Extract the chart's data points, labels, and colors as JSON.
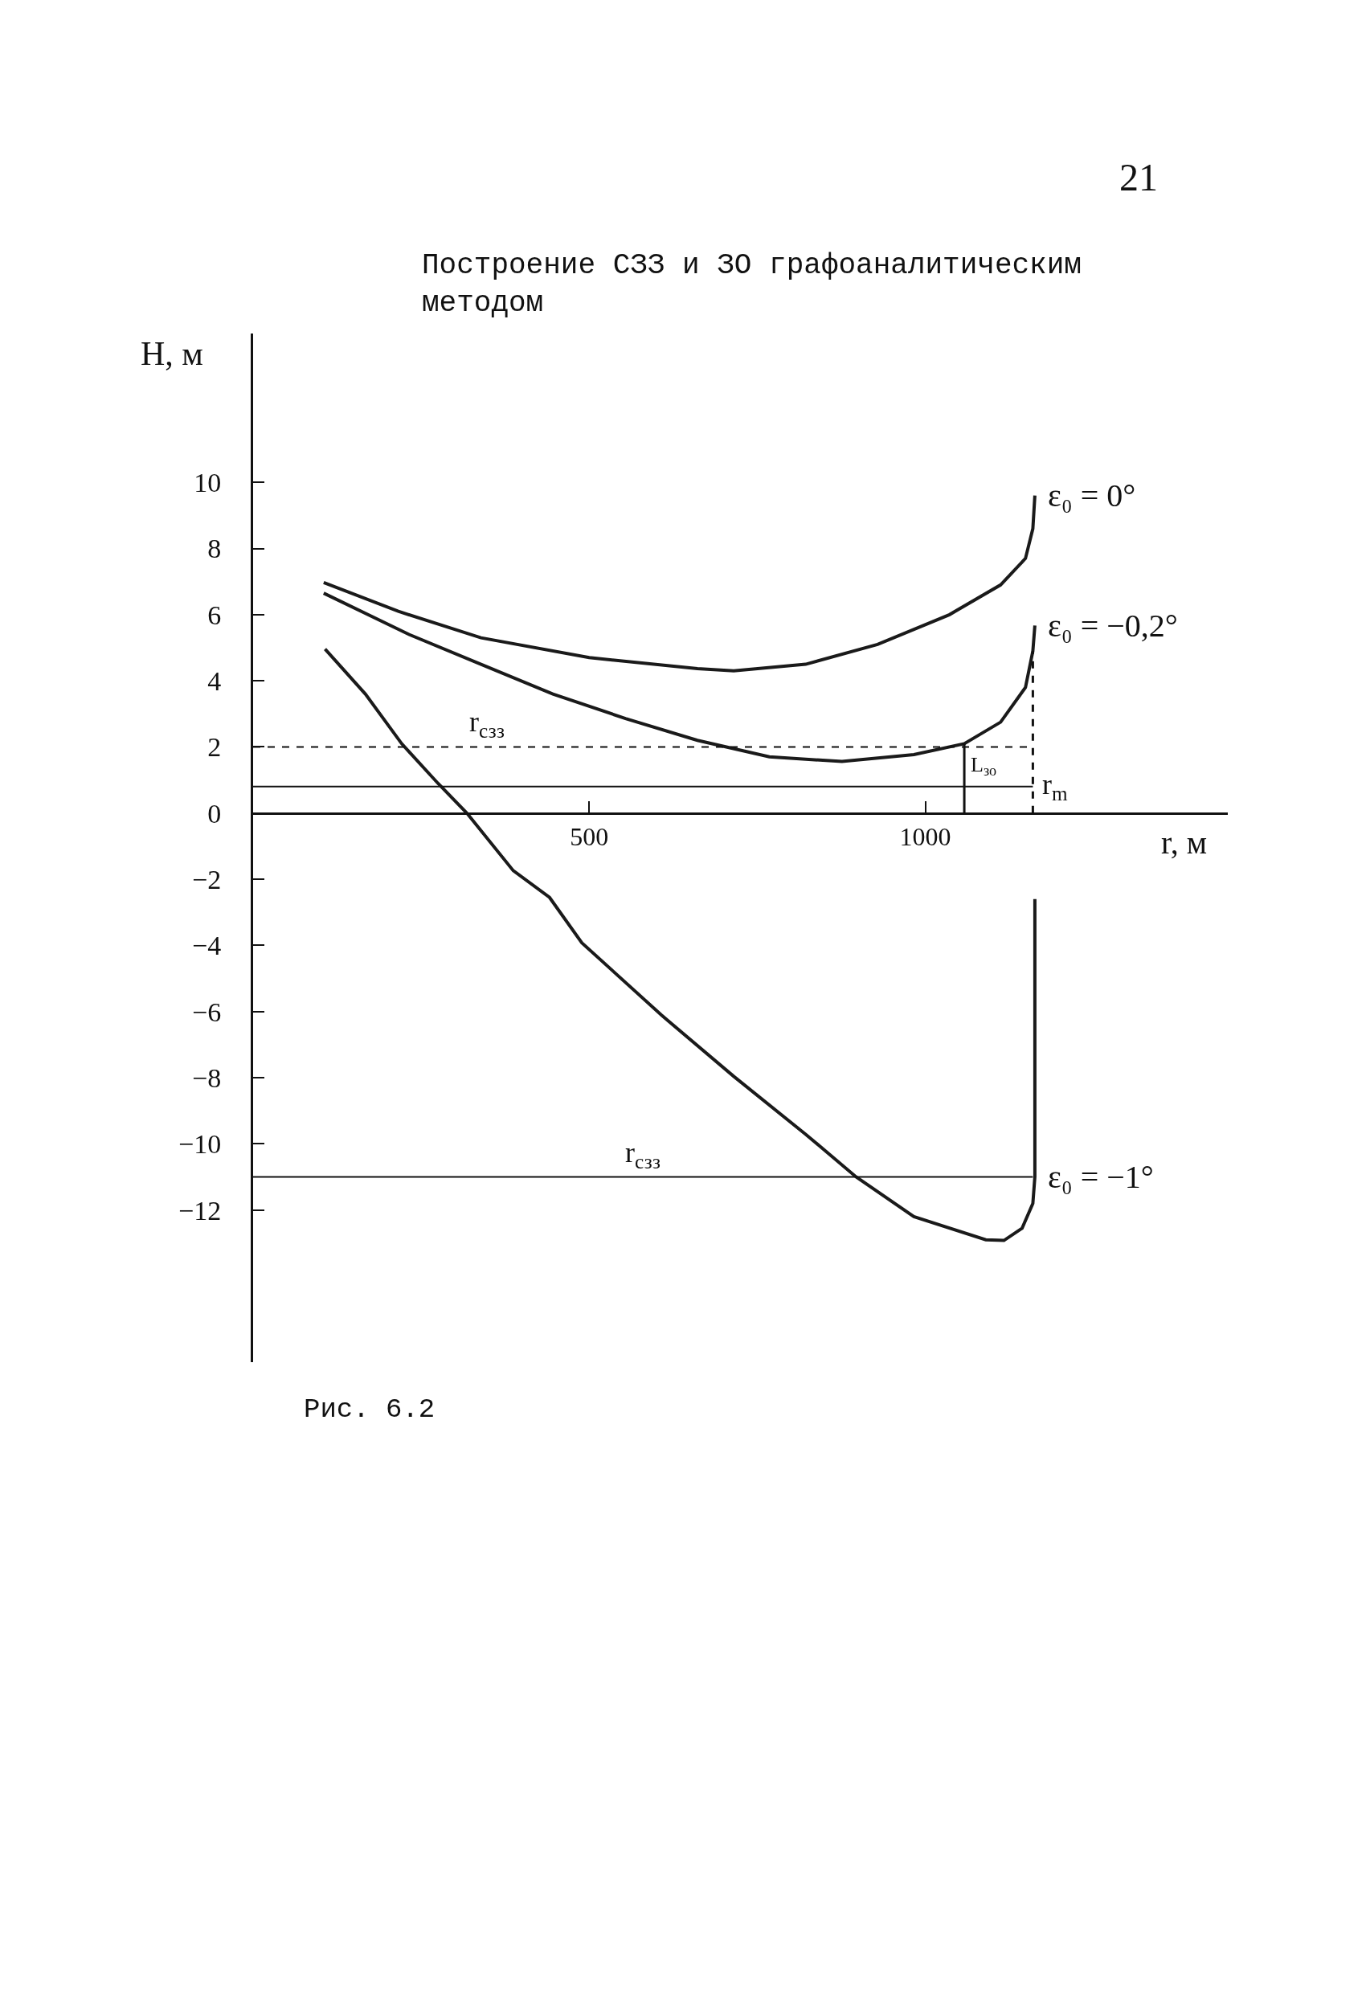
{
  "chart_data": {
    "type": "line",
    "title": "Построение СЗЗ и ЗО графоаналитическим\nметодом",
    "xlabel": "r, м",
    "ylabel": "H, м",
    "xlim": [
      0,
      1450
    ],
    "ylim": [
      -16.6,
      14.5
    ],
    "xticks": [
      500,
      1000
    ],
    "yticks": [
      10,
      8,
      6,
      4,
      2,
      0,
      -2,
      -4,
      -6,
      -8,
      -10,
      -12
    ],
    "grid": false,
    "legend": false,
    "marker": "none",
    "line_style": "solid",
    "series": [
      {
        "name": "ε₀ = 0°",
        "color": "#1a1a1a",
        "x": [
          105,
          216,
          339,
          500,
          661,
          715,
          822,
          929,
          1036,
          1112,
          1149,
          1160,
          1163
        ],
        "values": [
          6.97,
          6.1,
          5.3,
          4.7,
          4.37,
          4.3,
          4.5,
          5.1,
          6.0,
          6.9,
          7.7,
          8.6,
          9.6
        ]
      },
      {
        "name": "ε₀ = −0,2°",
        "color": "#1a1a1a",
        "x": [
          105,
          232,
          339,
          446,
          554,
          661,
          768,
          876,
          983,
          1058,
          1112,
          1149,
          1160,
          1163
        ],
        "values": [
          6.65,
          5.4,
          4.5,
          3.6,
          2.86,
          2.2,
          1.7,
          1.56,
          1.77,
          2.1,
          2.75,
          3.8,
          4.9,
          5.67
        ]
      },
      {
        "name": "ε₀ = −1°",
        "color": "#1a1a1a",
        "x": [
          107,
          167,
          221,
          275,
          318,
          387,
          441,
          489,
          607,
          715,
          822,
          897,
          983,
          1090,
          1117,
          1144,
          1160,
          1163,
          1163,
          1163
        ],
        "values": [
          4.96,
          3.6,
          2.1,
          0.9,
          0,
          -1.74,
          -2.55,
          -3.92,
          -6.1,
          -7.96,
          -9.71,
          -11.0,
          -12.2,
          -12.9,
          -12.92,
          -12.55,
          -11.8,
          -11.0,
          -8.3,
          -2.6
        ]
      }
    ],
    "ref_lines": [
      {
        "axis": "y",
        "value": 2,
        "label": "r$_{сзз}$",
        "line_style": "dashed"
      },
      {
        "axis": "y",
        "value": 0.8,
        "label": "r$_{m}$",
        "line_style": "solid"
      },
      {
        "axis": "y",
        "value": -11,
        "label": "r$_{сзз}$",
        "line_style": "solid"
      },
      {
        "axis": "x",
        "value": 1160,
        "label": null,
        "line_style": "dashed"
      },
      {
        "axis": "x",
        "value": 1058,
        "label": "L$_{зо}$",
        "line_style": "solid"
      }
    ],
    "annotations": [
      "Рис. 6.2",
      "21"
    ]
  }
}
